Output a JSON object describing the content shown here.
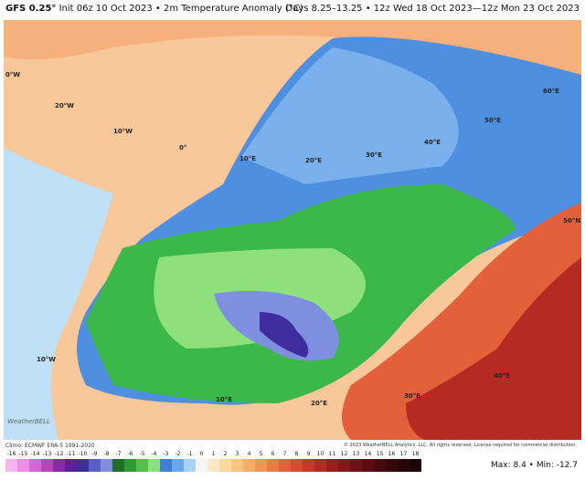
{
  "header": {
    "model": "GFS 0.25°",
    "init": "Init 06z 10 Oct 2023 • 2m Temperature Anomaly (°C)",
    "valid": "Days 8.25–13.25 • 12z Wed 18 Oct 2023—12z Mon 23 Oct 2023"
  },
  "map_labels": [
    {
      "text": "0°W"
    },
    {
      "text": "20°W"
    },
    {
      "text": "10°W"
    },
    {
      "text": "0°"
    },
    {
      "text": "10°E"
    },
    {
      "text": "20°E"
    },
    {
      "text": "30°E"
    },
    {
      "text": "40°E"
    },
    {
      "text": "50°E"
    },
    {
      "text": "60°E"
    },
    {
      "text": "10°W"
    },
    {
      "text": "10°E"
    },
    {
      "text": "20°E"
    },
    {
      "text": "30°E"
    },
    {
      "text": "40°E"
    },
    {
      "text": "50°N"
    }
  ],
  "footer": {
    "climo": "Climo: ECMWF ERA-5 1991-2020",
    "copyright": "© 2023 WeatherBELL Analytics, LLC. All rights reserved. License required for commercial distribution.",
    "stats": "Max: 8.4 • Min: -12.7",
    "logo": "WeatherBELL"
  },
  "colorbar": {
    "labels": [
      -16,
      -15,
      -14,
      -13,
      -12,
      -11,
      -10,
      -9,
      -8,
      -7,
      -6,
      -5,
      -4,
      -3,
      -2,
      -1,
      0,
      1,
      2,
      3,
      4,
      5,
      6,
      7,
      8,
      9,
      10,
      11,
      12,
      13,
      14,
      15,
      16,
      17,
      18
    ],
    "colors": [
      "#f7b5f0",
      "#ec8ee6",
      "#d865d4",
      "#b844b8",
      "#8a2aa8",
      "#5d1f9c",
      "#3f2d9e",
      "#5a5fc8",
      "#7e8fe0",
      "#1f6e28",
      "#2f9a32",
      "#52c04a",
      "#8ee07c",
      "#3f7fd8",
      "#6aa8ec",
      "#a6d2f4",
      "#f4f4f4",
      "#fbe7c4",
      "#fbd8a0",
      "#fac483",
      "#f7ad68",
      "#f39455",
      "#ec7a45",
      "#e3613a",
      "#d84b30",
      "#c83829",
      "#b52a22",
      "#9e1e1c",
      "#861618",
      "#6f1014",
      "#5a0c10",
      "#470a0d",
      "#36070a",
      "#280508",
      "#1c0306"
    ]
  }
}
